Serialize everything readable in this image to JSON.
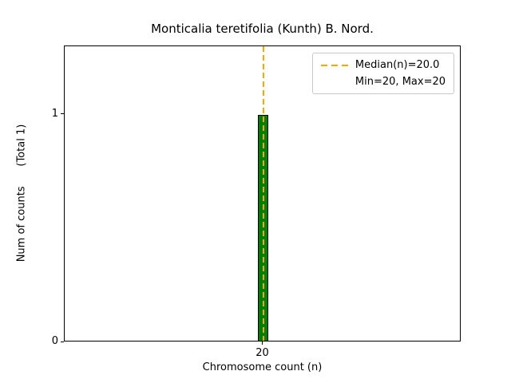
{
  "figure": {
    "title": "Monticalia teretifolia (Kunth) B. Nord.",
    "xlabel": "Chromosome count (n)",
    "ylabel": "Num of counts      (Total 1)"
  },
  "legend": {
    "entries": [
      {
        "label": "Median(n)=20.0",
        "has_line_sample": true,
        "line_color": "#FFA500",
        "line_style": "dashed"
      },
      {
        "label": "Min=20, Max=20",
        "has_line_sample": false
      }
    ],
    "position": "upper right"
  },
  "chart_data": {
    "type": "bar",
    "title": "Monticalia teretifolia (Kunth) B. Nord.",
    "xlabel": "Chromosome count (n)",
    "ylabel": "Num of counts (Total 1)",
    "x": [
      20
    ],
    "values": [
      1
    ],
    "total_counts": 1,
    "median": 20.0,
    "min": 20,
    "max": 20,
    "bar_width_data": 0.028,
    "bar_color": "#008000",
    "bar_edge_color": "#000000",
    "median_line_color": "#FFA500",
    "xlim": [
      19.5,
      20.5
    ],
    "ylim": [
      0,
      1.3
    ],
    "xticks": [
      {
        "value": 20,
        "label": "20"
      }
    ],
    "yticks": [
      {
        "value": 0,
        "label": "0"
      },
      {
        "value": 1,
        "label": "1"
      }
    ],
    "grid": false,
    "legend_position": "upper right"
  }
}
